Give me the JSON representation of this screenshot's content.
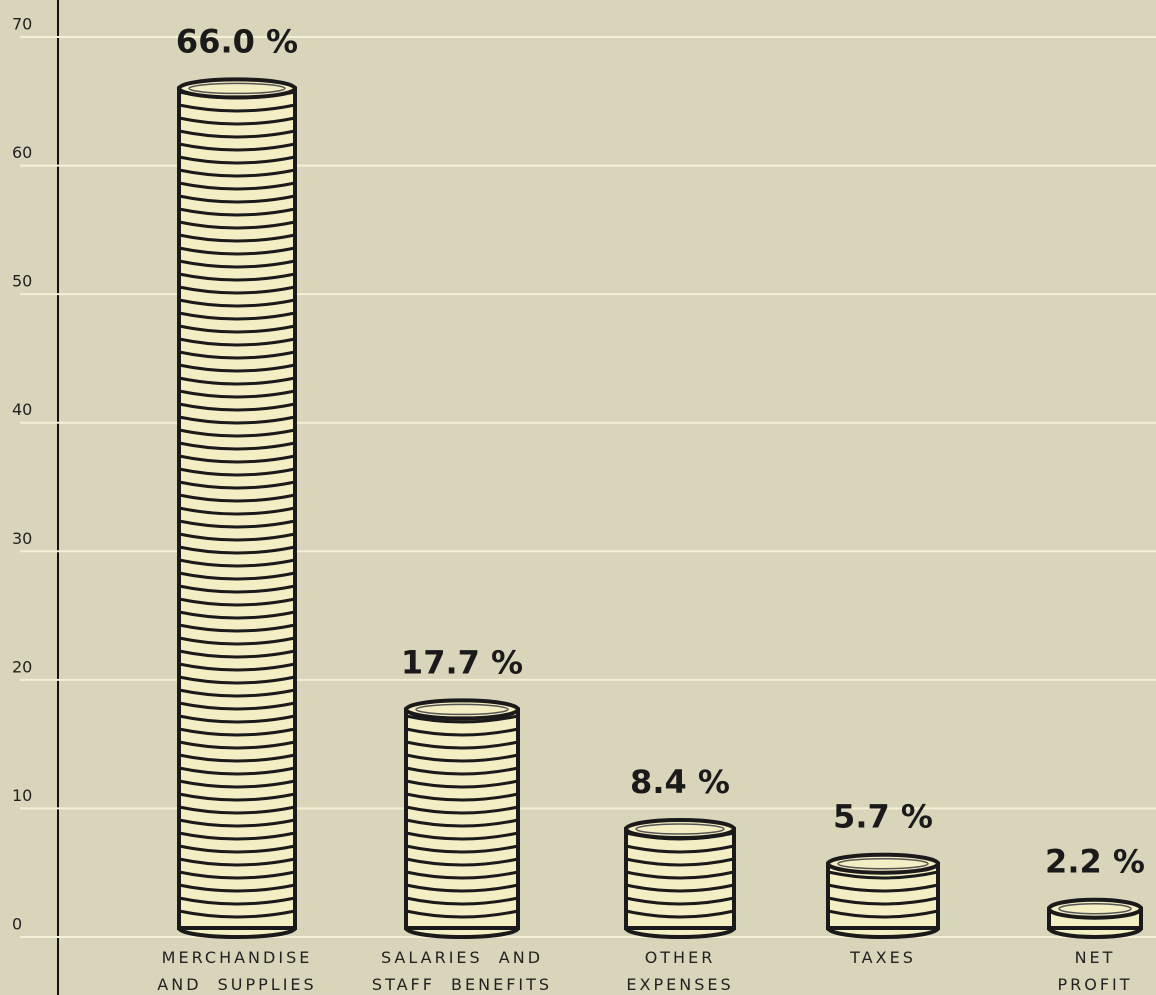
{
  "chart_data": {
    "type": "bar",
    "categories": [
      "MERCHANDISE\nAND SUPPLIES",
      "SALARIES AND\nSTAFF BENEFITS",
      "OTHER\nEXPENSES",
      "TAXES",
      "NET\nPROFIT"
    ],
    "values": [
      66.0,
      17.7,
      8.4,
      5.7,
      2.2
    ],
    "value_labels": [
      "66.0 %",
      "17.7 %",
      "8.4 %",
      "5.7 %",
      "2.2 %"
    ],
    "color": "#f4eec4",
    "ylim": [
      0,
      70
    ],
    "yticks": [
      0,
      10,
      20,
      30,
      40,
      50,
      60,
      70
    ],
    "grid": true
  }
}
